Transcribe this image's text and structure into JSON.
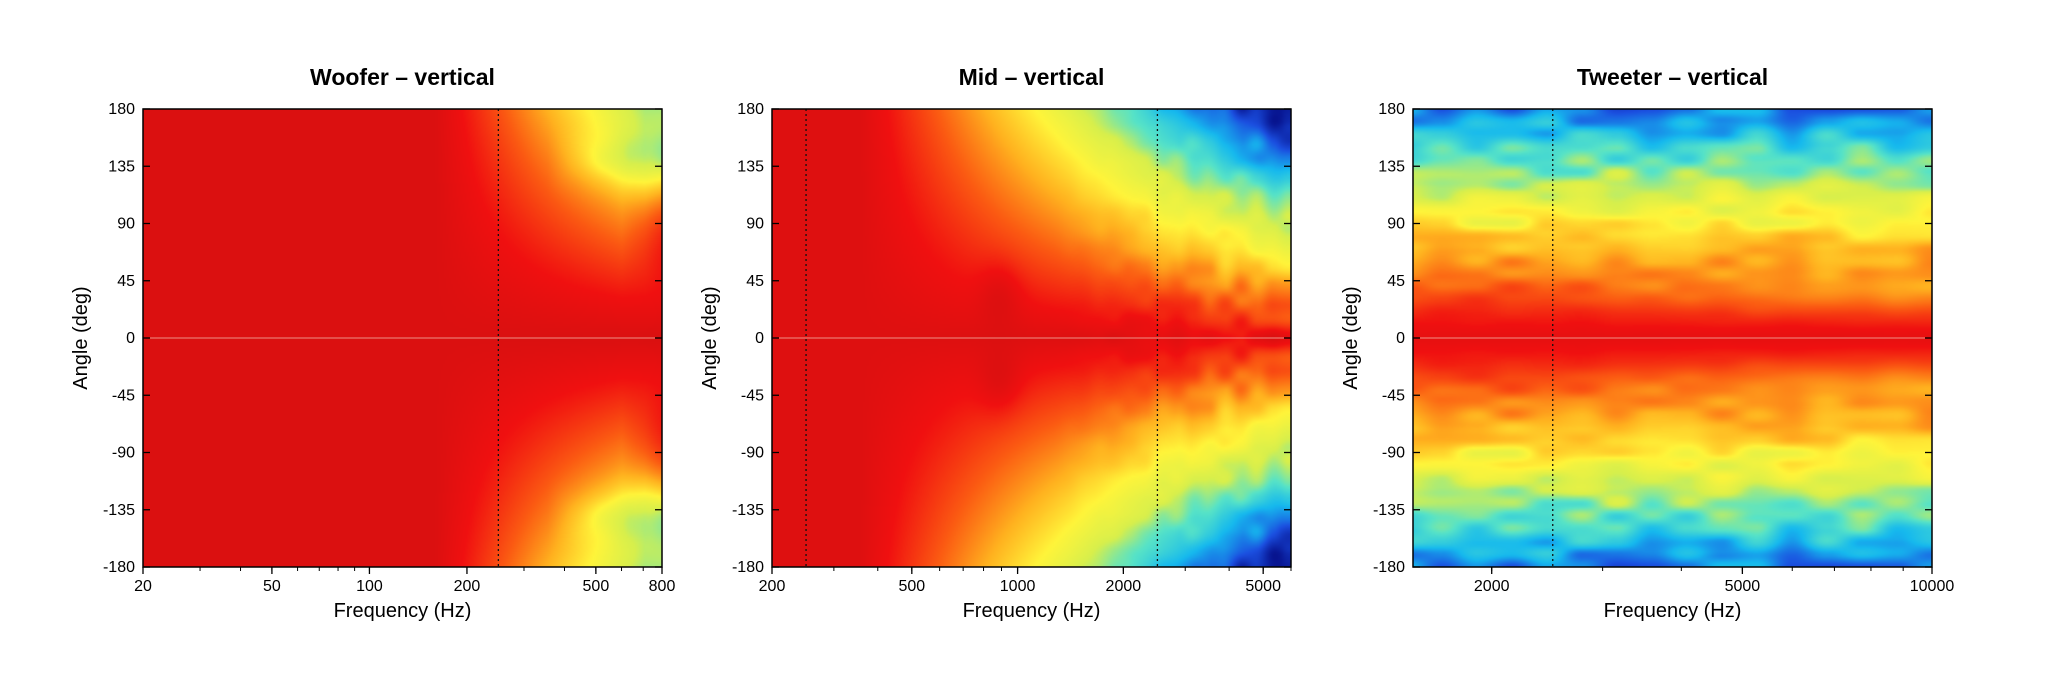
{
  "colors": {
    "colormap": [
      "#06108a",
      "#1b4fe0",
      "#16b9ee",
      "#57e3c7",
      "#d7ef4c",
      "#fff43a",
      "#ffb21f",
      "#fb5a12",
      "#f01010",
      "#cf1010"
    ],
    "contour_line": "#3a3a3a",
    "crossover_line": "#111111",
    "axis": "#000000"
  },
  "chart_data": [
    {
      "type": "heatmap",
      "title": "Woofer – vertical",
      "xlabel": "Frequency (Hz)",
      "ylabel": "Angle (deg)",
      "x_scale": "log",
      "xlim": [
        20,
        800
      ],
      "ylim": [
        -180,
        180
      ],
      "x_ticks": [
        20,
        50,
        100,
        200,
        500,
        800
      ],
      "y_ticks": [
        180,
        135,
        90,
        45,
        0,
        -45,
        -90,
        -135,
        -180
      ],
      "crossover_lines_hz": [
        250
      ],
      "colorbar": "none",
      "pattern": "woofer"
    },
    {
      "type": "heatmap",
      "title": "Mid – vertical",
      "xlabel": "Frequency (Hz)",
      "ylabel": "Angle (deg)",
      "x_scale": "log",
      "xlim": [
        200,
        6000
      ],
      "ylim": [
        -180,
        180
      ],
      "x_ticks": [
        200,
        500,
        1000,
        2000,
        5000
      ],
      "y_ticks": [
        180,
        135,
        90,
        45,
        0,
        -45,
        -90,
        -135,
        -180
      ],
      "crossover_lines_hz": [
        250,
        2500
      ],
      "colorbar": "none",
      "pattern": "mid"
    },
    {
      "type": "heatmap",
      "title": "Tweeter – vertical",
      "xlabel": "Frequency (Hz)",
      "ylabel": "Angle (deg)",
      "x_scale": "log",
      "xlim": [
        1500,
        10000
      ],
      "ylim": [
        -180,
        180
      ],
      "x_ticks": [
        2000,
        5000,
        10000
      ],
      "y_ticks": [
        180,
        135,
        90,
        45,
        0,
        -45,
        -90,
        -135,
        -180
      ],
      "crossover_lines_hz": [
        2500
      ],
      "colorbar": "none",
      "pattern": "tweeter"
    }
  ]
}
